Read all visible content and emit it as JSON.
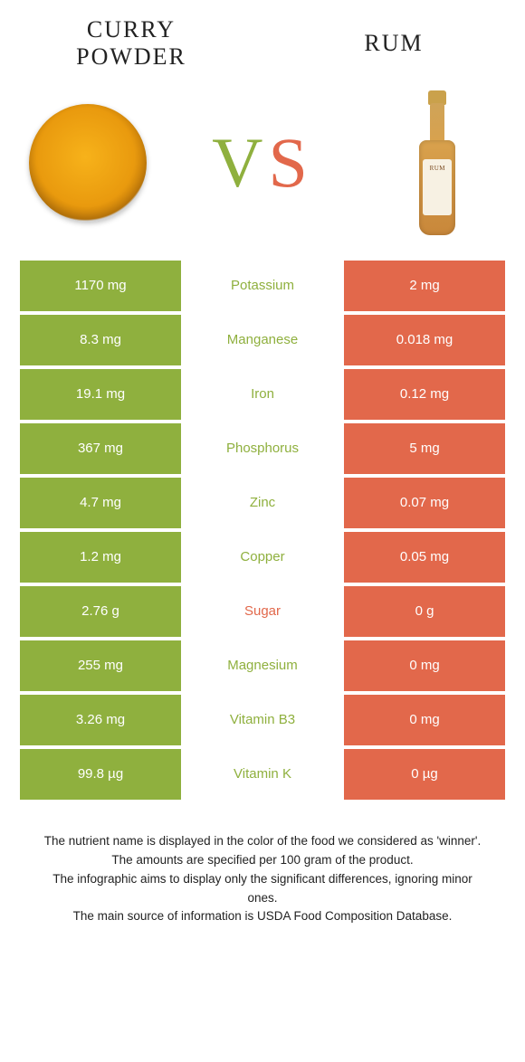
{
  "header": {
    "left_line1": "CURRY",
    "left_line2": "POWDER",
    "right": "RUM"
  },
  "vs": {
    "v": "V",
    "s": "S"
  },
  "rum_label": "RUM",
  "colors": {
    "green": "#8fb03e",
    "orange": "#e2684b",
    "white": "#ffffff"
  },
  "rows": [
    {
      "left": "1170 mg",
      "name": "Potassium",
      "winner": "green",
      "right": "2 mg"
    },
    {
      "left": "8.3 mg",
      "name": "Manganese",
      "winner": "green",
      "right": "0.018 mg"
    },
    {
      "left": "19.1 mg",
      "name": "Iron",
      "winner": "green",
      "right": "0.12 mg"
    },
    {
      "left": "367 mg",
      "name": "Phosphorus",
      "winner": "green",
      "right": "5 mg"
    },
    {
      "left": "4.7 mg",
      "name": "Zinc",
      "winner": "green",
      "right": "0.07 mg"
    },
    {
      "left": "1.2 mg",
      "name": "Copper",
      "winner": "green",
      "right": "0.05 mg"
    },
    {
      "left": "2.76 g",
      "name": "Sugar",
      "winner": "orange",
      "right": "0 g"
    },
    {
      "left": "255 mg",
      "name": "Magnesium",
      "winner": "green",
      "right": "0 mg"
    },
    {
      "left": "3.26 mg",
      "name": "Vitamin B3",
      "winner": "green",
      "right": "0 mg"
    },
    {
      "left": "99.8 µg",
      "name": "Vitamin K",
      "winner": "green",
      "right": "0 µg"
    }
  ],
  "footnotes": [
    "The nutrient name is displayed in the color of the food we considered as 'winner'.",
    "The amounts are specified per 100 gram of the product.",
    "The infographic aims to display only the significant differences, ignoring minor ones.",
    "The main source of information is USDA Food Composition Database."
  ]
}
